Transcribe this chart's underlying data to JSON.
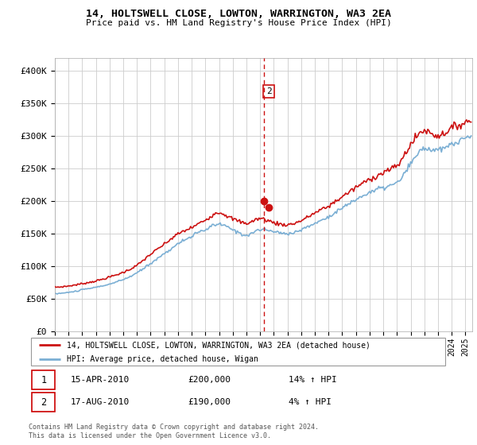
{
  "title": "14, HOLTSWELL CLOSE, LOWTON, WARRINGTON, WA3 2EA",
  "subtitle": "Price paid vs. HM Land Registry's House Price Index (HPI)",
  "legend_line1": "14, HOLTSWELL CLOSE, LOWTON, WARRINGTON, WA3 2EA (detached house)",
  "legend_line2": "HPI: Average price, detached house, Wigan",
  "annotation1_date": "15-APR-2010",
  "annotation1_price": "£200,000",
  "annotation1_hpi": "14% ↑ HPI",
  "annotation2_date": "17-AUG-2010",
  "annotation2_price": "£190,000",
  "annotation2_hpi": "4% ↑ HPI",
  "footer": "Contains HM Land Registry data © Crown copyright and database right 2024.\nThis data is licensed under the Open Government Licence v3.0.",
  "hpi_color": "#7bafd4",
  "price_color": "#cc1111",
  "vline_color": "#cc1111",
  "ylim": [
    0,
    420000
  ],
  "yticks": [
    0,
    50000,
    100000,
    150000,
    200000,
    250000,
    300000,
    350000,
    400000
  ],
  "ytick_labels": [
    "£0",
    "£50K",
    "£100K",
    "£150K",
    "£200K",
    "£250K",
    "£300K",
    "£350K",
    "£400K"
  ],
  "sale1_year": 2010.29,
  "sale1_price": 200000,
  "sale2_year": 2010.63,
  "sale2_price": 190000,
  "xlim_left": 1995.0,
  "xlim_right": 2025.5
}
